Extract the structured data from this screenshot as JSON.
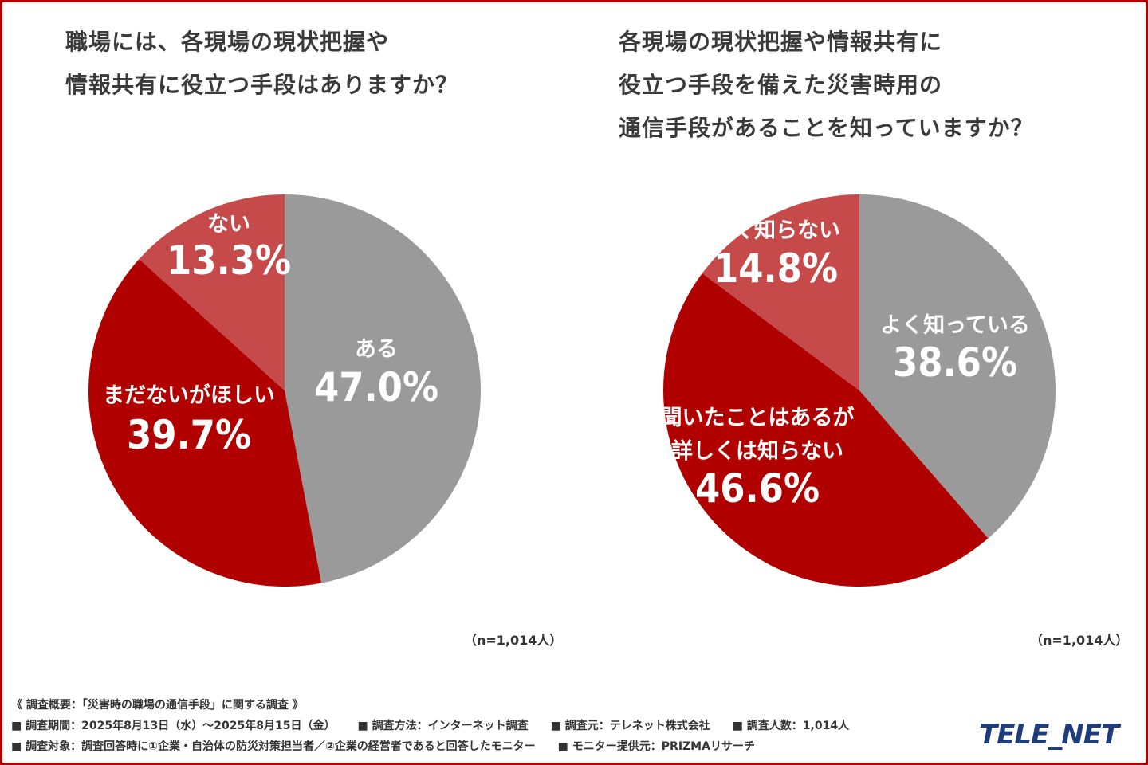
{
  "colors": {
    "gray": "#9a9a9a",
    "red_dark": "#b00000",
    "red_light": "#c64a4a"
  },
  "chart_data": [
    {
      "type": "pie",
      "title": [
        "職場には、各現場の現状把握や",
        "情報共有に役立つ手段はありますか？"
      ],
      "slices": [
        {
          "label": [
            "ある"
          ],
          "value": 47.0,
          "display": "47.0%",
          "color": "#9a9a9a"
        },
        {
          "label": [
            "まだないがほしい"
          ],
          "value": 39.7,
          "display": "39.7%",
          "color": "#b00000"
        },
        {
          "label": [
            "ない"
          ],
          "value": 13.3,
          "display": "13.3%",
          "color": "#c64a4a"
        }
      ],
      "n": "（n=1,014人）"
    },
    {
      "type": "pie",
      "title": [
        "各現場の現状把握や情報共有に",
        "役立つ手段を備えた災害時用の",
        "通信手段があることを知っていますか？"
      ],
      "slices": [
        {
          "label": [
            "よく知っている"
          ],
          "value": 38.6,
          "display": "38.6%",
          "color": "#9a9a9a"
        },
        {
          "label": [
            "聞いたことはあるが",
            "詳しくは知らない"
          ],
          "value": 46.6,
          "display": "46.6%",
          "color": "#b00000"
        },
        {
          "label": [
            "全く知らない"
          ],
          "value": 14.8,
          "display": "14.8%",
          "color": "#c64a4a"
        }
      ],
      "n": "（n=1,014人）"
    }
  ],
  "footer": {
    "heading": "《 調査概要：「災害時の職場の通信手段」に関する調査 》",
    "period": "■ 調査期間：2025年8月13日（水）〜2025年8月15日（金）",
    "method": "■ 調査方法：インターネット調査",
    "source": "■ 調査元：テレネット株式会社",
    "count": "■ 調査人数：1,014人",
    "target": "■ 調査対象：調査回答時に①企業・自治体の防災対策担当者／②企業の経営者であると回答したモニター",
    "provider": "■ モニター提供元：PRIZMAリサーチ"
  },
  "logo": "TELE_NET"
}
